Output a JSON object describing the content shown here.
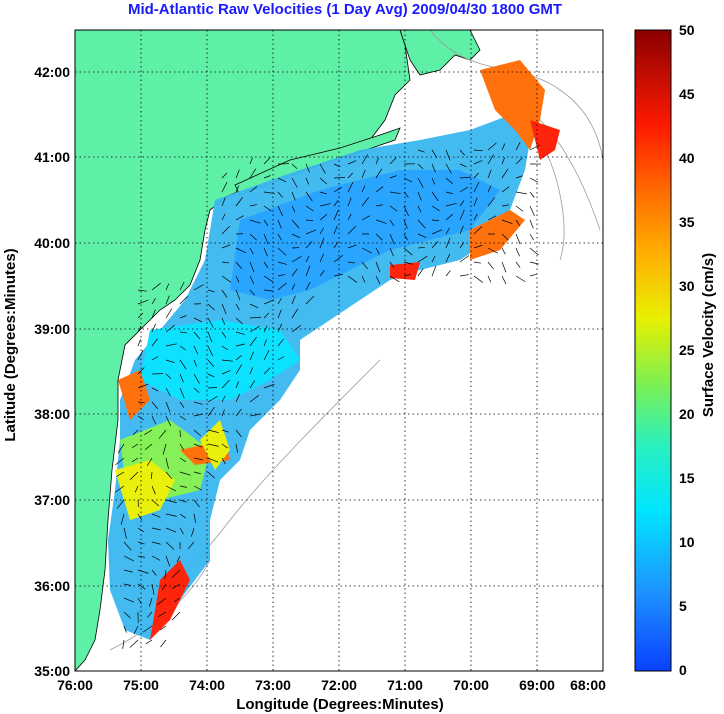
{
  "title": "Mid-Atlantic Raw Velocities (1 Day Avg) 2009/04/30 1800 GMT",
  "xlabel": "Longitude (Degrees:Minutes)",
  "ylabel": "Latitude (Degrees:Minutes)",
  "colorbar_label": "Surface Velocity (cm/s)",
  "x_ticks": [
    "76:00",
    "75:00",
    "74:00",
    "73:00",
    "72:00",
    "71:00",
    "70:00",
    "69:00",
    "68:00"
  ],
  "y_ticks": [
    "42:00",
    "41:00",
    "40:00",
    "39:00",
    "38:00",
    "37:00",
    "36:00",
    "35:00"
  ],
  "colorbar_ticks": [
    "50",
    "45",
    "40",
    "35",
    "30",
    "25",
    "20",
    "15",
    "10",
    "5",
    "0"
  ],
  "colors": {
    "title": "#1a1aff",
    "land": "#5ff0a8",
    "coast": "#000000",
    "grid": "#000000",
    "bathymetry": "#9a9a9a"
  },
  "chart_data": {
    "type": "heatmap",
    "title": "Mid-Atlantic Raw Velocities (1 Day Avg) 2009/04/30 1800 GMT",
    "xlabel": "Longitude (Degrees:Minutes)",
    "ylabel": "Latitude (Degrees:Minutes)",
    "x_range": [
      -76,
      -68
    ],
    "y_range": [
      35,
      42.5
    ],
    "colorbar": {
      "label": "Surface Velocity (cm/s)",
      "range": [
        0,
        50
      ],
      "colormap": "jet"
    },
    "grid": true,
    "legend": "right"
  }
}
